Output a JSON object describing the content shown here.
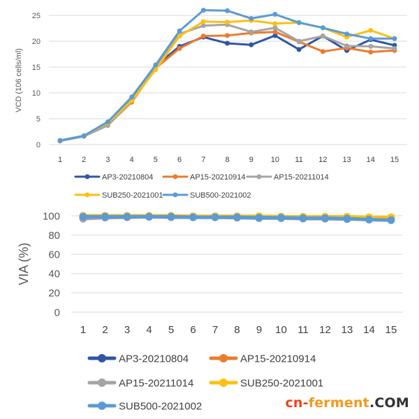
{
  "chart_data": [
    {
      "type": "line",
      "title": "",
      "xlabel": "",
      "ylabel": "VCD (106 cells/ml)",
      "ylim": [
        0,
        25
      ],
      "yticks": [
        0,
        5,
        10,
        15,
        20,
        25
      ],
      "categories": [
        "1",
        "2",
        "3",
        "4",
        "5",
        "6",
        "7",
        "8",
        "9",
        "10",
        "11",
        "12",
        "13",
        "14",
        "15"
      ],
      "legend_position": "bottom",
      "grid": "horizontal",
      "series": [
        {
          "name": "AP3-20210804",
          "color": "#2f56a6",
          "values": [
            0.7,
            1.6,
            3.9,
            8.6,
            15.2,
            19.0,
            20.8,
            19.6,
            19.3,
            21.1,
            18.4,
            21.0,
            18.2,
            20.3,
            19.2
          ]
        },
        {
          "name": "AP15-20210914",
          "color": "#ec7b30",
          "values": [
            0.7,
            1.6,
            3.8,
            8.2,
            14.8,
            18.6,
            21.0,
            21.1,
            21.6,
            21.8,
            19.9,
            18.0,
            18.7,
            17.9,
            18.2
          ]
        },
        {
          "name": "AP15-20211014",
          "color": "#a5a5a5",
          "values": [
            0.7,
            1.6,
            3.7,
            8.4,
            15.0,
            21.4,
            23.0,
            23.2,
            21.8,
            22.6,
            20.0,
            21.0,
            19.1,
            19.0,
            18.6
          ]
        },
        {
          "name": "SUB250-2021001",
          "color": "#fbc012",
          "values": [
            0.8,
            1.7,
            4.2,
            8.5,
            14.5,
            21.0,
            23.8,
            23.7,
            24.0,
            23.4,
            23.6,
            22.6,
            20.8,
            22.1,
            20.5
          ]
        },
        {
          "name": "SUB500-2021002",
          "color": "#5b9bd5",
          "values": [
            0.8,
            1.7,
            4.4,
            9.2,
            15.4,
            22.0,
            26.0,
            25.9,
            24.4,
            25.2,
            23.6,
            22.6,
            21.4,
            20.5,
            20.5
          ]
        }
      ]
    },
    {
      "type": "line",
      "title": "",
      "xlabel": "",
      "ylabel": "VIA (%)",
      "ylim": [
        0,
        100
      ],
      "yticks": [
        0,
        20,
        40,
        60,
        80,
        100
      ],
      "categories": [
        "1",
        "2",
        "3",
        "4",
        "5",
        "6",
        "7",
        "8",
        "9",
        "10",
        "11",
        "12",
        "13",
        "14",
        "15"
      ],
      "legend_position": "bottom",
      "grid": "horizontal",
      "series": [
        {
          "name": "AP3-20210804",
          "color": "#2f56a6",
          "values": [
            98,
            98.5,
            99,
            99,
            99,
            99,
            99,
            98.5,
            98,
            98,
            97.5,
            97.5,
            97,
            96.5,
            96
          ]
        },
        {
          "name": "AP15-20210914",
          "color": "#ec7b30",
          "values": [
            99,
            99.5,
            99.5,
            99.5,
            99,
            99,
            99,
            99,
            99,
            99,
            98.5,
            98.5,
            98,
            98,
            97.5
          ]
        },
        {
          "name": "AP15-20211014",
          "color": "#a5a5a5",
          "values": [
            97,
            98,
            98.5,
            99,
            98.5,
            98.5,
            98.5,
            98,
            97.5,
            97.5,
            97,
            97,
            96.5,
            96.5,
            96
          ]
        },
        {
          "name": "SUB250-2021001",
          "color": "#fbc012",
          "values": [
            100,
            100,
            100,
            100,
            100,
            99.5,
            99.5,
            99.5,
            99.5,
            99,
            99,
            99,
            99,
            98.5,
            98.5
          ]
        },
        {
          "name": "SUB500-2021002",
          "color": "#5b9bd5",
          "values": [
            99,
            99,
            99,
            99,
            99,
            98.5,
            98.5,
            98.5,
            98,
            98,
            97.5,
            97.5,
            97,
            96,
            95.5
          ]
        }
      ]
    }
  ],
  "watermark": {
    "part1": "cn-",
    "part2": "ferment",
    "part3": ".COM"
  }
}
